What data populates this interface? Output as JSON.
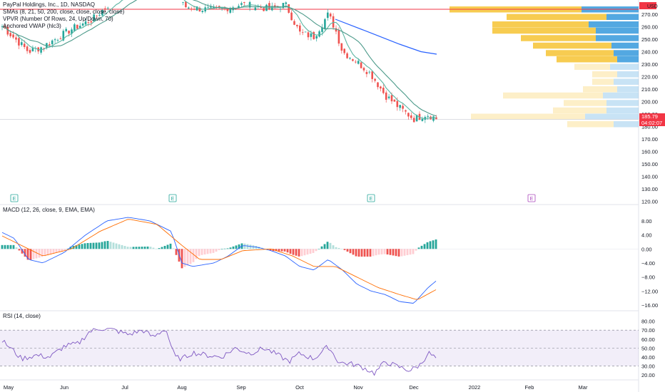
{
  "legend": {
    "title": "PayPal Holdings, Inc., 1D, NASDAQ",
    "smas": "SMAs (8, 21, 50, 200, close, close, close, close)",
    "vpvr": "VPVR (Number Of Rows, 24, Up/Down, 70)",
    "vwap": "Anchored VWAP (hlc3)"
  },
  "currency_label": "USD",
  "price_tag": {
    "value": "185.79",
    "countdown": "04:02:07"
  },
  "macd_title": "MACD (12, 26, close, 9, EMA, EMA)",
  "rsi_title": "RSI (14, close)",
  "earnings_marker": "E",
  "months": [
    "May",
    "Jun",
    "Jul",
    "Aug",
    "Sep",
    "Oct",
    "Nov",
    "Dec",
    "2022",
    "Feb",
    "Mar"
  ],
  "colors": {
    "up": "#26a69a",
    "down": "#ef5350",
    "vol_buy": "#f7c948",
    "vol_sell": "#4aa3df",
    "ma_fast": "#5bb5a2",
    "ma_slow": "#2962ff",
    "macd_line": "#2962ff",
    "signal_line": "#ff6d00",
    "rsi": "#7e57c2",
    "resistance": "#f23645"
  },
  "chart_data": [
    {
      "type": "candlestick",
      "name": "price",
      "yticks": [
        270,
        260,
        250,
        240,
        230,
        220,
        210,
        200,
        190,
        180,
        170,
        160,
        150,
        140,
        130,
        120
      ],
      "ylim": [
        118,
        278
      ],
      "resistance_level": 274,
      "last_price": 185.79
    },
    {
      "type": "bar",
      "name": "macd",
      "yticks": [
        8.0,
        4.0,
        0.0,
        -4.0,
        -8.0,
        -12.0,
        -16.0
      ],
      "ylim": [
        -17,
        10
      ]
    },
    {
      "type": "line",
      "name": "rsi",
      "yticks": [
        80.0,
        70.0,
        60.0,
        50.0,
        40.0,
        30.0,
        20.0
      ],
      "ylim": [
        17,
        82
      ],
      "bands": [
        30,
        50,
        70
      ]
    }
  ]
}
